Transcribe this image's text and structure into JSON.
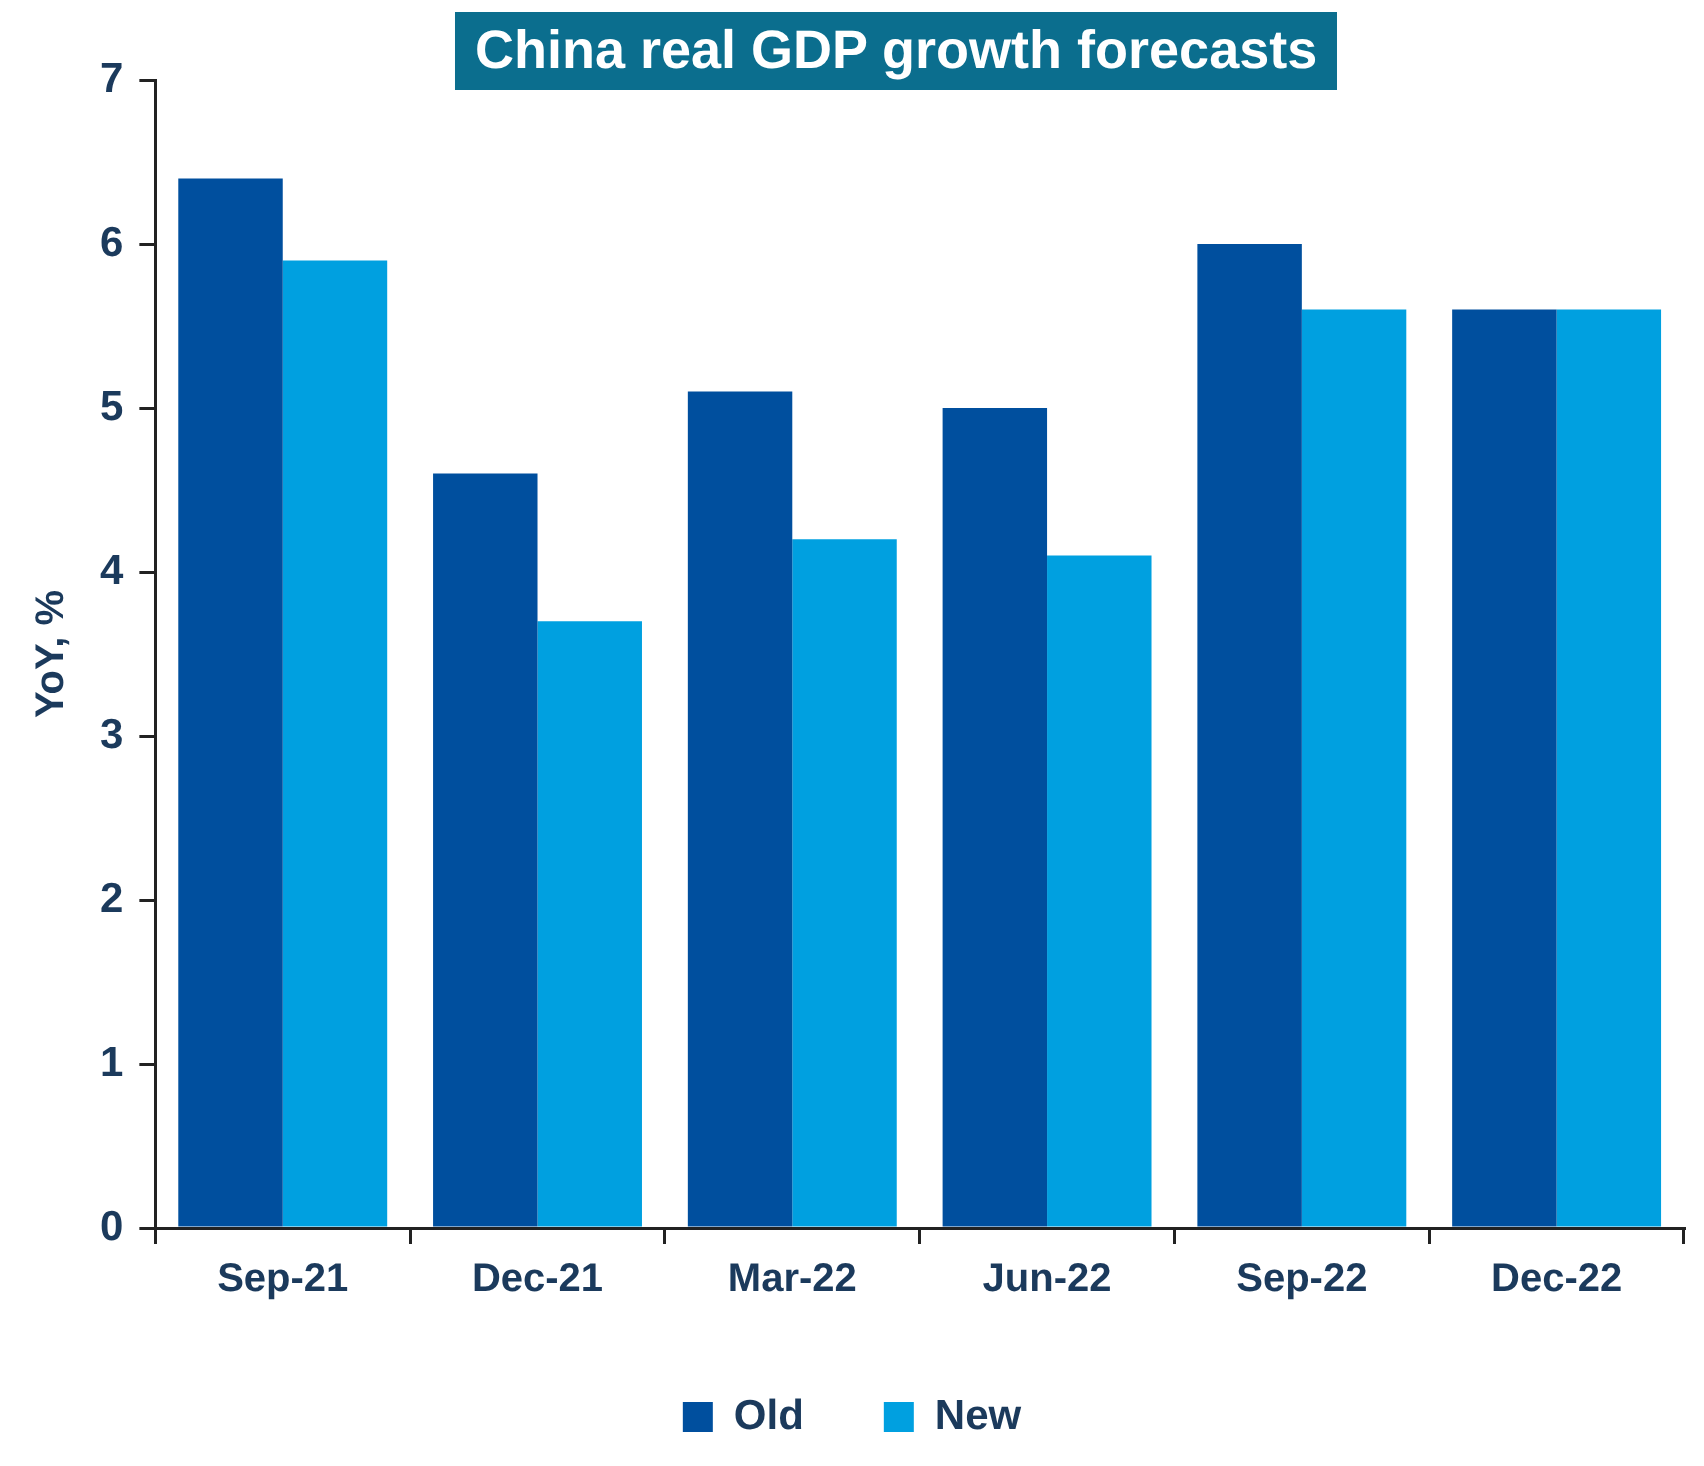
{
  "chart_data": {
    "type": "bar",
    "title": "China real GDP growth forecasts",
    "ylabel": "YoY, %",
    "categories": [
      "Sep-21",
      "Dec-21",
      "Mar-22",
      "Jun-22",
      "Sep-22",
      "Dec-22"
    ],
    "series": [
      {
        "name": "Old",
        "color": "#004f9e",
        "values": [
          6.4,
          4.6,
          5.1,
          5.0,
          6.0,
          5.6
        ]
      },
      {
        "name": "New",
        "color": "#00a0e0",
        "values": [
          5.9,
          3.7,
          4.2,
          4.1,
          5.6,
          5.6
        ]
      }
    ],
    "ylim": [
      0,
      7
    ],
    "yticks": [
      0,
      1,
      2,
      3,
      4,
      5,
      6,
      7
    ],
    "grid": false,
    "legend": "bottom"
  }
}
